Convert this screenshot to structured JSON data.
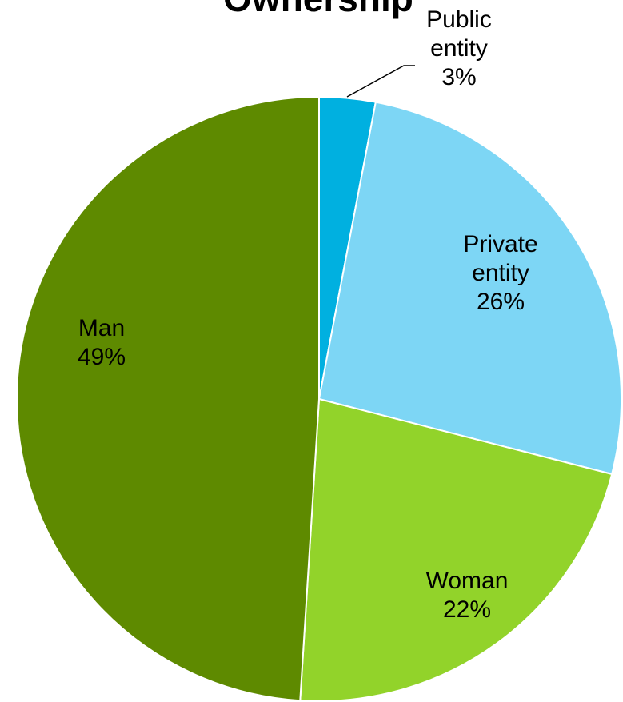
{
  "chart_data": {
    "type": "pie",
    "title": "Ownership",
    "slices": [
      {
        "label": "Public entity",
        "value": 3,
        "label_lines": [
          "Public",
          "entity"
        ],
        "value_text": "3%",
        "color": "#00B0E0"
      },
      {
        "label": "Private entity",
        "value": 26,
        "label_lines": [
          "Private",
          "entity"
        ],
        "value_text": "26%",
        "color": "#7DD6F5"
      },
      {
        "label": "Woman",
        "value": 22,
        "label_lines": [
          "Woman"
        ],
        "value_text": "22%",
        "color": "#92D32A"
      },
      {
        "label": "Man",
        "value": 49,
        "label_lines": [
          "Man"
        ],
        "value_text": "49%",
        "color": "#5E8A00"
      }
    ],
    "start_angle_deg": 0,
    "direction": "clockwise",
    "legend": "none"
  }
}
